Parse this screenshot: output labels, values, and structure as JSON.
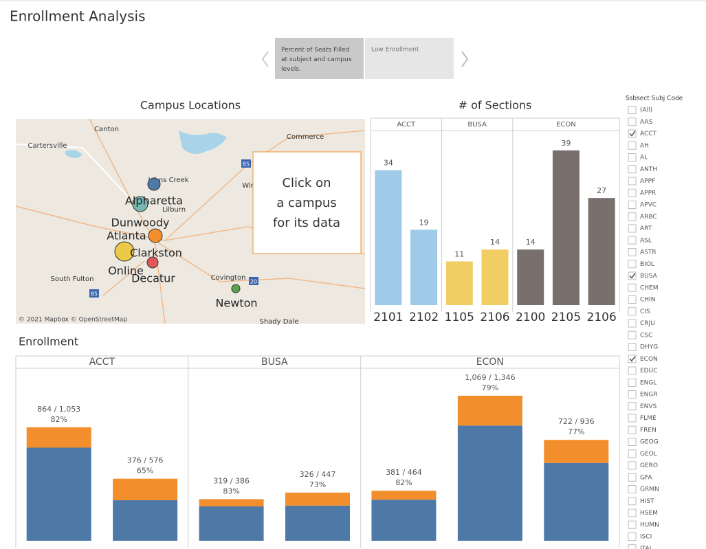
{
  "header": {
    "title": "Enrollment Analysis"
  },
  "tabs": [
    "Percent of Seats Filled at subject and campus levels.",
    "Low Enrollment"
  ],
  "map": {
    "title": "Campus Locations",
    "places": [
      "Canton",
      "Cartersville",
      "Johns Creek",
      "Commerce",
      "Winder",
      "Lilburn",
      "South Fulton",
      "Covington",
      "Shady Dale"
    ],
    "campuses": [
      "Alpharetta",
      "Dunwoody",
      "Atlanta",
      "Clarkston",
      "Online",
      "Decatur",
      "Newton"
    ],
    "highways": [
      "85",
      "85",
      "20"
    ],
    "attribution": "© 2021 Mapbox © OpenStreetMap",
    "callout": [
      "Click on",
      "a campus",
      "for its data"
    ]
  },
  "filter": {
    "title": "Ssbsect Subj Code",
    "items": [
      {
        "label": "(All)",
        "checked": false
      },
      {
        "label": "AAS",
        "checked": false
      },
      {
        "label": "ACCT",
        "checked": true
      },
      {
        "label": "AH",
        "checked": false
      },
      {
        "label": "AL",
        "checked": false
      },
      {
        "label": "ANTH",
        "checked": false
      },
      {
        "label": "APPF",
        "checked": false
      },
      {
        "label": "APPR",
        "checked": false
      },
      {
        "label": "APVC",
        "checked": false
      },
      {
        "label": "ARBC",
        "checked": false
      },
      {
        "label": "ART",
        "checked": false
      },
      {
        "label": "ASL",
        "checked": false
      },
      {
        "label": "ASTR",
        "checked": false
      },
      {
        "label": "BIOL",
        "checked": false
      },
      {
        "label": "BUSA",
        "checked": true
      },
      {
        "label": "CHEM",
        "checked": false
      },
      {
        "label": "CHIN",
        "checked": false
      },
      {
        "label": "CIS",
        "checked": false
      },
      {
        "label": "CRJU",
        "checked": false
      },
      {
        "label": "CSC",
        "checked": false
      },
      {
        "label": "DHYG",
        "checked": false
      },
      {
        "label": "ECON",
        "checked": true
      },
      {
        "label": "EDUC",
        "checked": false
      },
      {
        "label": "ENGL",
        "checked": false
      },
      {
        "label": "ENGR",
        "checked": false
      },
      {
        "label": "ENVS",
        "checked": false
      },
      {
        "label": "FLME",
        "checked": false
      },
      {
        "label": "FREN",
        "checked": false
      },
      {
        "label": "GEOG",
        "checked": false
      },
      {
        "label": "GEOL",
        "checked": false
      },
      {
        "label": "GERO",
        "checked": false
      },
      {
        "label": "GFA",
        "checked": false
      },
      {
        "label": "GRMN",
        "checked": false
      },
      {
        "label": "HIST",
        "checked": false
      },
      {
        "label": "HSEM",
        "checked": false
      },
      {
        "label": "HUMN",
        "checked": false
      },
      {
        "label": "ISCI",
        "checked": false
      },
      {
        "label": "ITAL",
        "checked": false
      }
    ]
  },
  "chart_data": [
    {
      "type": "bar",
      "title": "# of Sections",
      "ylim": [
        0,
        44
      ],
      "panes": [
        {
          "name": "ACCT",
          "color": "#a0cbe8",
          "categories": [
            "2101",
            "2102"
          ],
          "values": [
            34,
            19
          ]
        },
        {
          "name": "BUSA",
          "color": "#f1ce63",
          "categories": [
            "1105",
            "2106"
          ],
          "values": [
            11,
            14
          ]
        },
        {
          "name": "ECON",
          "color": "#79706e",
          "categories": [
            "2100",
            "2105",
            "2106"
          ],
          "values": [
            14,
            39,
            27
          ]
        }
      ]
    },
    {
      "type": "stacked_bar",
      "title": "Enrollment",
      "ylim": [
        0,
        1575
      ],
      "colors": [
        "#4e79a7",
        "#f28e2b"
      ],
      "panes": [
        {
          "name": "ACCT",
          "series": [
            {
              "values": [
                864,
                376
              ]
            },
            {
              "values": [
                189,
                200
              ]
            }
          ],
          "value_labels": [
            "864 / 1,053",
            "376 / 576"
          ],
          "pct_labels": [
            "82%",
            "65%"
          ]
        },
        {
          "name": "BUSA",
          "series": [
            {
              "values": [
                319,
                326
              ]
            },
            {
              "values": [
                67,
                121
              ]
            }
          ],
          "value_labels": [
            "319 / 386",
            "326 / 447"
          ],
          "pct_labels": [
            "83%",
            "73%"
          ]
        },
        {
          "name": "ECON",
          "series": [
            {
              "values": [
                381,
                1069,
                722
              ]
            },
            {
              "values": [
                83,
                277,
                214
              ]
            }
          ],
          "value_labels": [
            "381 / 464",
            "1,069 / 1,346",
            "722 / 936"
          ],
          "pct_labels": [
            "82%",
            "79%",
            "77%"
          ]
        }
      ]
    }
  ]
}
